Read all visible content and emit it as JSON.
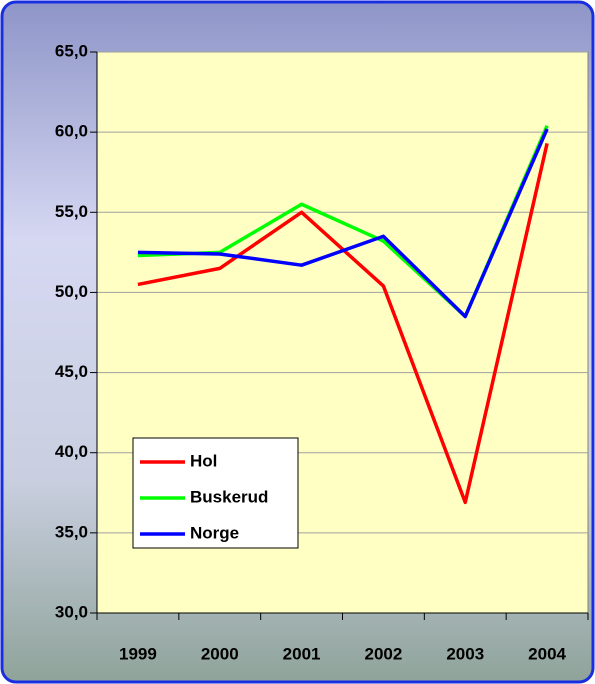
{
  "chart_data": {
    "type": "line",
    "categories": [
      "1999",
      "2000",
      "2001",
      "2002",
      "2003",
      "2004"
    ],
    "series": [
      {
        "name": "Hol",
        "color": "#ff0000",
        "values": [
          50.5,
          51.5,
          55.0,
          50.4,
          36.9,
          59.3
        ]
      },
      {
        "name": "Buskerud",
        "color": "#00ff00",
        "values": [
          52.3,
          52.5,
          55.5,
          53.2,
          48.5,
          60.4
        ]
      },
      {
        "name": "Norge",
        "color": "#0000ff",
        "values": [
          52.5,
          52.4,
          51.7,
          53.5,
          48.5,
          60.2
        ]
      }
    ],
    "ylim": [
      30,
      65
    ],
    "yticks": [
      {
        "value": 30,
        "label": "30,0"
      },
      {
        "value": 35,
        "label": "35,0"
      },
      {
        "value": 40,
        "label": "40,0"
      },
      {
        "value": 45,
        "label": "45,0"
      },
      {
        "value": 50,
        "label": "50,0"
      },
      {
        "value": 55,
        "label": "55,0"
      },
      {
        "value": 60,
        "label": "60,0"
      },
      {
        "value": 65,
        "label": "65,0"
      }
    ],
    "grid": true,
    "legend": "lower-left"
  }
}
